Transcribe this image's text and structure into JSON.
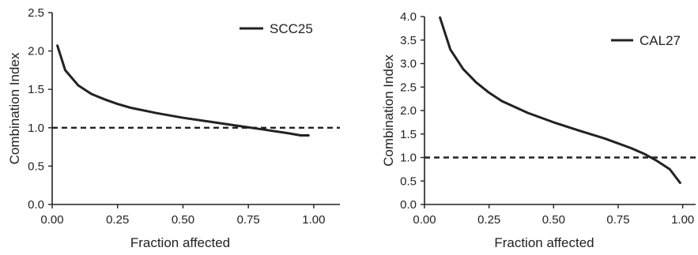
{
  "chart_data": [
    {
      "type": "line",
      "title": "",
      "xlabel": "Fraction affected",
      "ylabel": "Combination Index",
      "xlim": [
        0,
        1.1
      ],
      "ylim": [
        0,
        2.5
      ],
      "xticks": [
        "0.00",
        "0.25",
        "0.50",
        "0.75",
        "1.00"
      ],
      "xtick_values": [
        0,
        0.25,
        0.5,
        0.75,
        1.0
      ],
      "yticks": [
        "0.0",
        "0.5",
        "1.0",
        "1.5",
        "2.0",
        "2.5"
      ],
      "ytick_values": [
        0,
        0.5,
        1.0,
        1.5,
        2.0,
        2.5
      ],
      "grid": false,
      "legend_position": "top-right",
      "reference_line": {
        "y": 1.0,
        "style": "dashed"
      },
      "series": [
        {
          "name": "SCC25",
          "color": "#222222",
          "x": [
            0.02,
            0.05,
            0.1,
            0.15,
            0.2,
            0.25,
            0.3,
            0.4,
            0.5,
            0.6,
            0.7,
            0.8,
            0.9,
            0.95,
            0.98
          ],
          "y": [
            2.07,
            1.75,
            1.55,
            1.44,
            1.37,
            1.31,
            1.26,
            1.19,
            1.13,
            1.08,
            1.03,
            0.98,
            0.93,
            0.9,
            0.9
          ]
        }
      ]
    },
    {
      "type": "line",
      "title": "",
      "xlabel": "Fraction affected",
      "ylabel": "Combination Index",
      "xlim": [
        0,
        1.05
      ],
      "ylim": [
        0,
        4.0
      ],
      "xticks": [
        "0.00",
        "0.25",
        "0.50",
        "0.75",
        "1.00"
      ],
      "xtick_values": [
        0,
        0.25,
        0.5,
        0.75,
        1.0
      ],
      "yticks": [
        "0.0",
        "0.5",
        "1.0",
        "1.5",
        "2.0",
        "2.5",
        "3.0",
        "3.5",
        "4.0"
      ],
      "ytick_values": [
        0,
        0.5,
        1.0,
        1.5,
        2.0,
        2.5,
        3.0,
        3.5,
        4.0
      ],
      "grid": false,
      "legend_position": "top-right",
      "reference_line": {
        "y": 1.0,
        "style": "dashed"
      },
      "series": [
        {
          "name": "CAL27",
          "color": "#222222",
          "x": [
            0.06,
            0.1,
            0.15,
            0.2,
            0.25,
            0.3,
            0.4,
            0.5,
            0.6,
            0.7,
            0.8,
            0.85,
            0.9,
            0.95,
            0.99
          ],
          "y": [
            3.98,
            3.3,
            2.88,
            2.6,
            2.38,
            2.2,
            1.95,
            1.75,
            1.57,
            1.4,
            1.2,
            1.08,
            0.93,
            0.75,
            0.46
          ]
        }
      ]
    }
  ]
}
